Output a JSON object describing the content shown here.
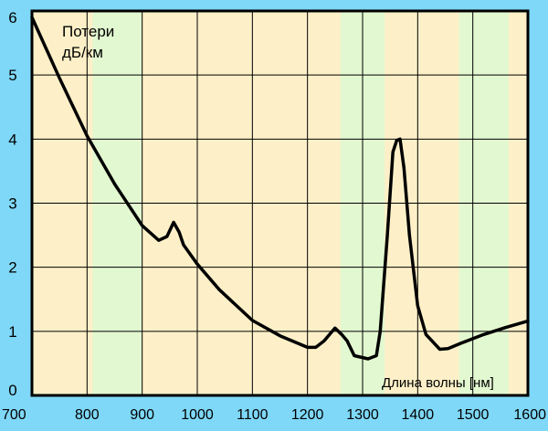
{
  "chart_data": {
    "type": "line",
    "ylabel_line1": "Потери",
    "ylabel_line2": "дБ/км",
    "xlabel": "Длина волны [нм]",
    "xlim": [
      700,
      1600
    ],
    "ylim": [
      0,
      6
    ],
    "x_ticks": [
      700,
      800,
      900,
      1000,
      1100,
      1200,
      1300,
      1400,
      1500,
      1600
    ],
    "y_ticks": [
      0,
      1,
      2,
      3,
      4,
      5,
      6
    ],
    "grid": true,
    "background_color": "#fdf0c8",
    "page_color": "#7fd8f7",
    "band_color": "#e2f8d0",
    "bands": [
      [
        810,
        900
      ],
      [
        1260,
        1340
      ],
      [
        1475,
        1565
      ]
    ],
    "line_color": "#000000",
    "series": [
      {
        "x": [
          700,
          750,
          800,
          850,
          900,
          930,
          945,
          957,
          967,
          975,
          1000,
          1040,
          1100,
          1150,
          1200,
          1215,
          1230,
          1250,
          1262,
          1272,
          1285,
          1310,
          1325,
          1332,
          1345,
          1355,
          1362,
          1368,
          1375,
          1385,
          1400,
          1415,
          1440,
          1455,
          1480,
          1520,
          1560,
          1600
        ],
        "y": [
          5.9,
          4.95,
          4.05,
          3.3,
          2.65,
          2.42,
          2.48,
          2.7,
          2.55,
          2.35,
          2.05,
          1.65,
          1.17,
          0.93,
          0.75,
          0.75,
          0.85,
          1.05,
          0.95,
          0.85,
          0.62,
          0.57,
          0.62,
          1.0,
          2.5,
          3.8,
          3.98,
          4.0,
          3.55,
          2.5,
          1.4,
          0.95,
          0.72,
          0.73,
          0.82,
          0.95,
          1.06,
          1.16
        ]
      }
    ]
  }
}
